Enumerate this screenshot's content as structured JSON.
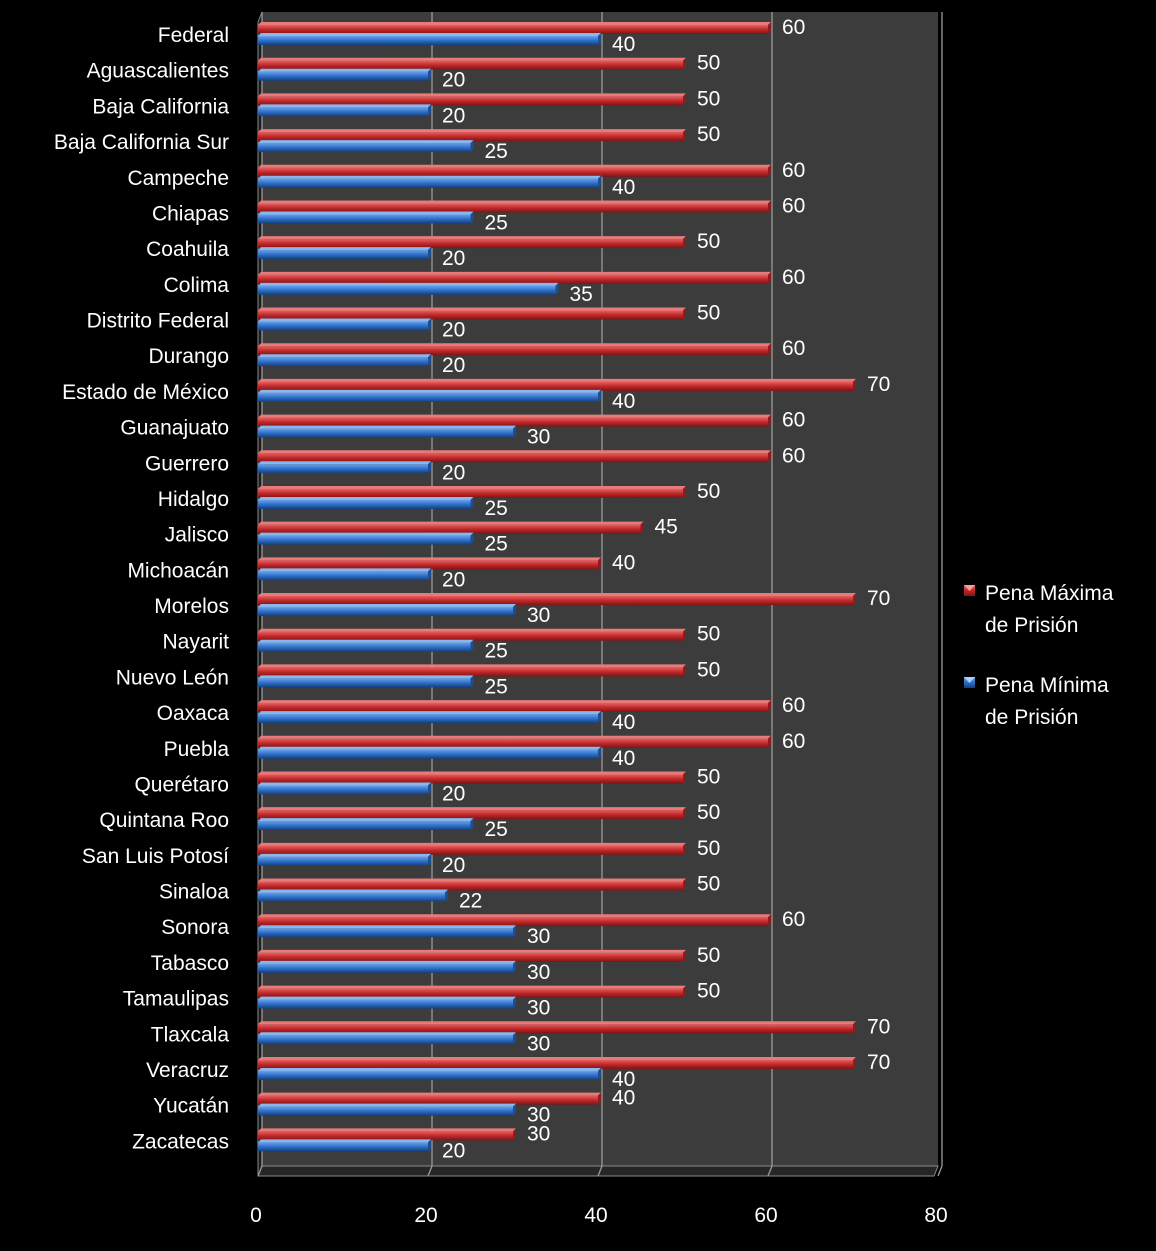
{
  "chart_data": {
    "type": "bar",
    "orientation": "horizontal",
    "three_d": true,
    "xlim": [
      0,
      80
    ],
    "x_ticks": [
      "0",
      "20",
      "40",
      "60",
      "80"
    ],
    "grid": true,
    "legend_position": "right",
    "categories": [
      "Federal",
      "Aguascalientes",
      "Baja California",
      "Baja California Sur",
      "Campeche",
      "Chiapas",
      "Coahuila",
      "Colima",
      "Distrito Federal",
      "Durango",
      "Estado de México",
      "Guanajuato",
      "Guerrero",
      "Hidalgo",
      "Jalisco",
      "Michoacán",
      "Morelos",
      "Nayarit",
      "Nuevo León",
      "Oaxaca",
      "Puebla",
      "Querétaro",
      "Quintana Roo",
      "San Luis Potosí",
      "Sinaloa",
      "Sonora",
      "Tabasco",
      "Tamaulipas",
      "Tlaxcala",
      "Veracruz",
      "Yucatán",
      "Zacatecas"
    ],
    "series": [
      {
        "name": "Pena Máxima de Prisión",
        "legend_lines": [
          "Pena Máxima",
          "de Prisión"
        ],
        "color": "#c0282a",
        "values": [
          60,
          50,
          50,
          50,
          60,
          60,
          50,
          60,
          50,
          60,
          70,
          60,
          60,
          50,
          45,
          40,
          70,
          50,
          50,
          60,
          60,
          50,
          50,
          50,
          50,
          60,
          50,
          50,
          70,
          70,
          40,
          30
        ]
      },
      {
        "name": "Pena Mínima de Prisión",
        "legend_lines": [
          "Pena Mínima",
          "de Prisión"
        ],
        "color": "#2d6fc8",
        "values": [
          40,
          20,
          20,
          25,
          40,
          25,
          20,
          35,
          20,
          20,
          40,
          30,
          20,
          25,
          25,
          20,
          30,
          25,
          25,
          40,
          40,
          20,
          25,
          20,
          22,
          30,
          30,
          30,
          30,
          40,
          30,
          20
        ]
      }
    ]
  }
}
